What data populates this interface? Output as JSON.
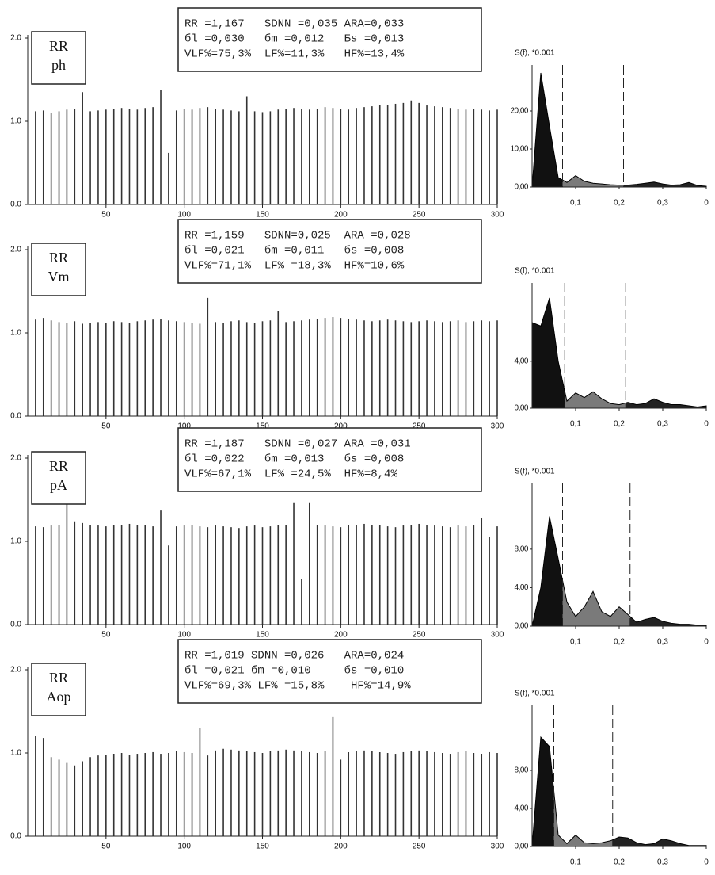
{
  "chart_data": [
    {
      "type": "bar",
      "annotations": [
        "RR",
        "ph"
      ],
      "info": [
        "RR =1,167   SDNN =0,035 ARA=0,033",
        "бl =0,030   бm =0,012   Бs =0,013",
        "VLF%=75,3%  LF%=11,3%   HF%=13,4%"
      ],
      "x": [
        5,
        10,
        15,
        20,
        25,
        30,
        35,
        40,
        45,
        50,
        55,
        60,
        65,
        70,
        75,
        80,
        85,
        90,
        95,
        100,
        105,
        110,
        115,
        120,
        125,
        130,
        135,
        140,
        145,
        150,
        155,
        160,
        165,
        170,
        175,
        180,
        185,
        190,
        195,
        200,
        205,
        210,
        215,
        220,
        225,
        230,
        235,
        240,
        245,
        250,
        255,
        260,
        265,
        270,
        275,
        280,
        285,
        290,
        295,
        300
      ],
      "values": [
        1.12,
        1.13,
        1.1,
        1.12,
        1.14,
        1.15,
        1.35,
        1.12,
        1.13,
        1.14,
        1.15,
        1.16,
        1.15,
        1.14,
        1.16,
        1.17,
        1.38,
        0.62,
        1.13,
        1.15,
        1.14,
        1.16,
        1.17,
        1.15,
        1.14,
        1.13,
        1.12,
        1.3,
        1.12,
        1.11,
        1.12,
        1.14,
        1.15,
        1.16,
        1.15,
        1.14,
        1.15,
        1.17,
        1.16,
        1.15,
        1.14,
        1.16,
        1.17,
        1.18,
        1.19,
        1.2,
        1.21,
        1.22,
        1.25,
        1.22,
        1.19,
        1.18,
        1.17,
        1.16,
        1.15,
        1.14,
        1.15,
        1.14,
        1.13,
        1.14
      ],
      "color": "#333333",
      "xlim": [
        0,
        300
      ],
      "ylim": [
        0,
        2
      ],
      "xticks": [
        50,
        100,
        150,
        200,
        250,
        300
      ],
      "yticks": [
        {
          "value": 0,
          "label": "0.0"
        },
        {
          "value": 1,
          "label": "1.0"
        },
        {
          "value": 2,
          "label": "2.0"
        }
      ]
    },
    {
      "type": "area",
      "y_label": "S(f), *0.001",
      "x": [
        0,
        0.02,
        0.04,
        0.06,
        0.08,
        0.1,
        0.12,
        0.14,
        0.16,
        0.18,
        0.2,
        0.22,
        0.24,
        0.26,
        0.28,
        0.3,
        0.32,
        0.34,
        0.36,
        0.38,
        0.4
      ],
      "values": [
        0,
        30,
        16,
        2.5,
        1.2,
        3.0,
        1.5,
        1.0,
        0.8,
        0.6,
        0.5,
        0.5,
        0.7,
        1.0,
        1.3,
        0.8,
        0.5,
        0.6,
        1.2,
        0.4,
        0.2
      ],
      "bands": [
        0.07,
        0.21
      ],
      "colors": [
        "#111111",
        "#7a7a7a",
        "#222222"
      ],
      "xlim": [
        0,
        0.4
      ],
      "ylim": [
        0,
        30
      ],
      "xticks": [
        {
          "value": 0.1,
          "label": "0,1"
        },
        {
          "value": 0.2,
          "label": "0,2"
        },
        {
          "value": 0.3,
          "label": "0,3"
        },
        {
          "value": 0.4,
          "label": "0"
        }
      ],
      "yticks": [
        {
          "value": 0,
          "label": "0,00"
        },
        {
          "value": 10,
          "label": "10,00"
        },
        {
          "value": 20,
          "label": "20,00"
        }
      ]
    },
    {
      "type": "bar",
      "annotations": [
        "RR",
        "Vm"
      ],
      "info": [
        "RR =1,159   SDNN=0,025  ARA =0,028",
        "бl =0,021   бm =0,011   бs =0,008",
        "VLF%=71,1%  LF% =18,3%  HF%=10,6%"
      ],
      "x": [
        5,
        10,
        15,
        20,
        25,
        30,
        35,
        40,
        45,
        50,
        55,
        60,
        65,
        70,
        75,
        80,
        85,
        90,
        95,
        100,
        105,
        110,
        115,
        120,
        125,
        130,
        135,
        140,
        145,
        150,
        155,
        160,
        165,
        170,
        175,
        180,
        185,
        190,
        195,
        200,
        205,
        210,
        215,
        220,
        225,
        230,
        235,
        240,
        245,
        250,
        255,
        260,
        265,
        270,
        275,
        280,
        285,
        290,
        295,
        300
      ],
      "values": [
        1.16,
        1.18,
        1.15,
        1.13,
        1.12,
        1.14,
        1.11,
        1.12,
        1.13,
        1.12,
        1.14,
        1.13,
        1.12,
        1.14,
        1.15,
        1.16,
        1.17,
        1.15,
        1.14,
        1.13,
        1.12,
        1.11,
        1.42,
        1.13,
        1.12,
        1.14,
        1.15,
        1.13,
        1.12,
        1.14,
        1.15,
        1.26,
        1.13,
        1.14,
        1.15,
        1.16,
        1.17,
        1.18,
        1.19,
        1.18,
        1.17,
        1.16,
        1.15,
        1.14,
        1.15,
        1.16,
        1.15,
        1.14,
        1.13,
        1.14,
        1.15,
        1.14,
        1.13,
        1.14,
        1.15,
        1.13,
        1.14,
        1.15,
        1.14,
        1.15
      ],
      "color": "#333333",
      "xlim": [
        0,
        300
      ],
      "ylim": [
        0,
        2
      ],
      "xticks": [
        50,
        100,
        150,
        200,
        250,
        300
      ],
      "yticks": [
        {
          "value": 0,
          "label": "0.0"
        },
        {
          "value": 1,
          "label": "1.0"
        },
        {
          "value": 2,
          "label": "2.0"
        }
      ]
    },
    {
      "type": "area",
      "y_label": "S(f), *0.001",
      "x": [
        0,
        0.02,
        0.04,
        0.06,
        0.08,
        0.1,
        0.12,
        0.14,
        0.16,
        0.18,
        0.2,
        0.22,
        0.24,
        0.26,
        0.28,
        0.3,
        0.32,
        0.34,
        0.36,
        0.38,
        0.4
      ],
      "values": [
        7.3,
        7.0,
        9.4,
        4.0,
        0.6,
        1.3,
        0.9,
        1.4,
        0.8,
        0.4,
        0.3,
        0.5,
        0.3,
        0.4,
        0.8,
        0.5,
        0.3,
        0.3,
        0.2,
        0.1,
        0.2
      ],
      "bands": [
        0.075,
        0.215
      ],
      "colors": [
        "#111111",
        "#7a7a7a",
        "#222222"
      ],
      "xlim": [
        0,
        0.4
      ],
      "ylim": [
        0,
        10
      ],
      "xticks": [
        {
          "value": 0.1,
          "label": "0,1"
        },
        {
          "value": 0.2,
          "label": "0,2"
        },
        {
          "value": 0.3,
          "label": "0,3"
        },
        {
          "value": 0.4,
          "label": "0"
        }
      ],
      "yticks": [
        {
          "value": 0,
          "label": "0,00"
        },
        {
          "value": 4,
          "label": "4,00"
        }
      ]
    },
    {
      "type": "bar",
      "annotations": [
        "RR",
        "pA"
      ],
      "info": [
        "RR =1,187   SDNN =0,027 ARA =0,031",
        "бl =0,022   бm =0,013   бs =0,008",
        "VLF%=67,1%  LF% =24,5%  HF%=8,4%"
      ],
      "x": [
        5,
        10,
        15,
        20,
        25,
        30,
        35,
        40,
        45,
        50,
        55,
        60,
        65,
        70,
        75,
        80,
        85,
        90,
        95,
        100,
        105,
        110,
        115,
        120,
        125,
        130,
        135,
        140,
        145,
        150,
        155,
        160,
        165,
        170,
        175,
        180,
        185,
        190,
        195,
        200,
        205,
        210,
        215,
        220,
        225,
        230,
        235,
        240,
        245,
        250,
        255,
        260,
        265,
        270,
        275,
        280,
        285,
        290,
        295,
        300
      ],
      "values": [
        1.18,
        1.17,
        1.19,
        1.2,
        1.55,
        1.24,
        1.22,
        1.2,
        1.19,
        1.18,
        1.19,
        1.2,
        1.21,
        1.2,
        1.19,
        1.18,
        1.37,
        0.95,
        1.18,
        1.19,
        1.2,
        1.18,
        1.17,
        1.19,
        1.18,
        1.17,
        1.16,
        1.18,
        1.19,
        1.17,
        1.18,
        1.19,
        1.2,
        1.46,
        0.55,
        1.46,
        1.2,
        1.19,
        1.18,
        1.17,
        1.19,
        1.2,
        1.21,
        1.2,
        1.19,
        1.18,
        1.17,
        1.19,
        1.2,
        1.21,
        1.2,
        1.19,
        1.18,
        1.17,
        1.19,
        1.18,
        1.2,
        1.28,
        1.05,
        1.18
      ],
      "color": "#333333",
      "xlim": [
        0,
        300
      ],
      "ylim": [
        0,
        2
      ],
      "xticks": [
        50,
        100,
        150,
        200,
        250,
        300
      ],
      "yticks": [
        {
          "value": 0,
          "label": "0.0"
        },
        {
          "value": 1,
          "label": "1.0"
        },
        {
          "value": 2,
          "label": "2.0"
        }
      ]
    },
    {
      "type": "area",
      "y_label": "S(f), *0.001",
      "x": [
        0,
        0.02,
        0.04,
        0.06,
        0.08,
        0.1,
        0.12,
        0.14,
        0.16,
        0.18,
        0.2,
        0.22,
        0.24,
        0.26,
        0.28,
        0.3,
        0.32,
        0.34,
        0.36,
        0.38,
        0.4
      ],
      "values": [
        0,
        4,
        11.4,
        7,
        2.5,
        1.0,
        2.0,
        3.6,
        1.5,
        1.0,
        2.0,
        1.2,
        0.4,
        0.7,
        0.9,
        0.5,
        0.3,
        0.2,
        0.2,
        0.1,
        0.1
      ],
      "bands": [
        0.07,
        0.225
      ],
      "colors": [
        "#111111",
        "#7a7a7a",
        "#222222"
      ],
      "xlim": [
        0,
        0.4
      ],
      "ylim": [
        0,
        14
      ],
      "xticks": [
        {
          "value": 0.1,
          "label": "0,1"
        },
        {
          "value": 0.2,
          "label": "0,2"
        },
        {
          "value": 0.3,
          "label": "0,3"
        },
        {
          "value": 0.4,
          "label": "0"
        }
      ],
      "yticks": [
        {
          "value": 0,
          "label": "0,00"
        },
        {
          "value": 4,
          "label": "4,00"
        },
        {
          "value": 8,
          "label": "8,00"
        }
      ]
    },
    {
      "type": "bar",
      "annotations": [
        "RR",
        "Aop"
      ],
      "info": [
        "RR =1,019 SDNN =0,026   ARA=0,024",
        "бl =0,021 бm =0,010     бs =0,010",
        "VLF%=69,3% LF% =15,8%    HF%=14,9%"
      ],
      "x": [
        5,
        10,
        15,
        20,
        25,
        30,
        35,
        40,
        45,
        50,
        55,
        60,
        65,
        70,
        75,
        80,
        85,
        90,
        95,
        100,
        105,
        110,
        115,
        120,
        125,
        130,
        135,
        140,
        145,
        150,
        155,
        160,
        165,
        170,
        175,
        180,
        185,
        190,
        195,
        200,
        205,
        210,
        215,
        220,
        225,
        230,
        235,
        240,
        245,
        250,
        255,
        260,
        265,
        270,
        275,
        280,
        285,
        290,
        295,
        300
      ],
      "values": [
        1.2,
        1.18,
        0.95,
        0.92,
        0.88,
        0.85,
        0.9,
        0.95,
        0.97,
        0.98,
        0.99,
        1.0,
        0.98,
        0.99,
        1.0,
        1.01,
        0.99,
        1.0,
        1.02,
        1.01,
        1.0,
        1.3,
        0.97,
        1.03,
        1.05,
        1.04,
        1.03,
        1.02,
        1.01,
        1.0,
        1.02,
        1.03,
        1.04,
        1.03,
        1.02,
        1.01,
        1.0,
        1.02,
        1.43,
        0.92,
        1.01,
        1.02,
        1.03,
        1.02,
        1.01,
        1.0,
        0.99,
        1.01,
        1.02,
        1.03,
        1.02,
        1.01,
        1.0,
        0.99,
        1.01,
        1.02,
        1.0,
        0.99,
        1.01,
        1.0
      ],
      "color": "#333333",
      "xlim": [
        0,
        300
      ],
      "ylim": [
        0,
        2
      ],
      "xticks": [
        50,
        100,
        150,
        200,
        250,
        300
      ],
      "yticks": [
        {
          "value": 0,
          "label": "0.0"
        },
        {
          "value": 1,
          "label": "1.0"
        },
        {
          "value": 2,
          "label": "2.0"
        }
      ]
    },
    {
      "type": "area",
      "y_label": "S(f), *0.001",
      "x": [
        0,
        0.02,
        0.04,
        0.06,
        0.08,
        0.1,
        0.12,
        0.14,
        0.16,
        0.18,
        0.2,
        0.22,
        0.24,
        0.26,
        0.28,
        0.3,
        0.32,
        0.34,
        0.36,
        0.38,
        0.4
      ],
      "values": [
        0,
        11.5,
        10.5,
        1.2,
        0.3,
        1.2,
        0.4,
        0.3,
        0.4,
        0.6,
        1.0,
        0.9,
        0.4,
        0.2,
        0.3,
        0.8,
        0.6,
        0.3,
        0.1,
        0.1,
        0.1
      ],
      "bands": [
        0.05,
        0.185
      ],
      "colors": [
        "#111111",
        "#7a7a7a",
        "#222222"
      ],
      "xlim": [
        0,
        0.4
      ],
      "ylim": [
        0,
        14
      ],
      "xticks": [
        {
          "value": 0.1,
          "label": "0,1"
        },
        {
          "value": 0.2,
          "label": "0,2"
        },
        {
          "value": 0.3,
          "label": "0,3"
        },
        {
          "value": 0.4,
          "label": "0"
        }
      ],
      "yticks": [
        {
          "value": 0,
          "label": "0,00"
        },
        {
          "value": 4,
          "label": "4,00"
        },
        {
          "value": 8,
          "label": "8,00"
        }
      ]
    }
  ]
}
